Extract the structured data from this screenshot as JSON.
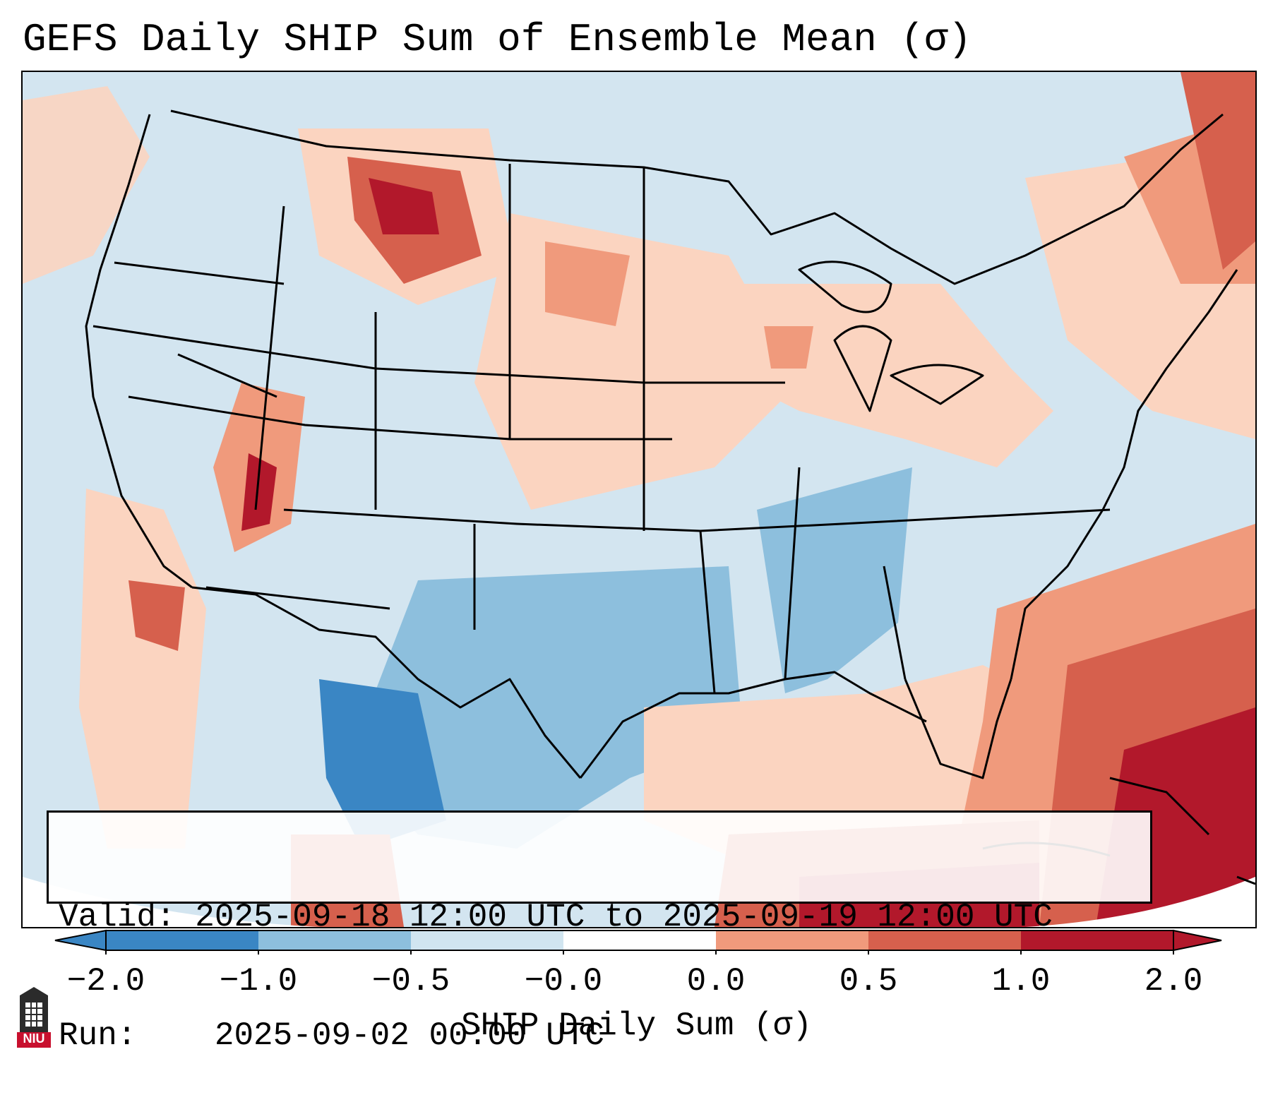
{
  "title": "GEFS Daily SHIP Sum of Ensemble Mean (σ)",
  "info": {
    "valid_label": "Valid:",
    "valid_value": "2025-09-18 12:00 UTC to 2025-09-19 12:00 UTC",
    "run_label": "Run:",
    "run_value": "2025-09-02 00:00 UTC"
  },
  "colorbar": {
    "label": "SHIP Daily Sum (σ)",
    "ticks": [
      "−2.0",
      "−1.0",
      "−0.5",
      "−0.0",
      "0.0",
      "0.5",
      "1.0",
      "2.0"
    ],
    "colors": [
      "#3a86c4",
      "#8dbfdd",
      "#d1e5f0",
      "#ffffff",
      "#fbd4c0",
      "#f09a7c",
      "#d6604d",
      "#b2182b"
    ]
  },
  "logo": {
    "text": "NIU"
  },
  "palette": {
    "ocean_background": "#d3e5f0",
    "light_blue": "#d1e5f0",
    "mid_blue": "#8dbfdd",
    "dark_blue": "#3a86c4",
    "light_red": "#fbd4c0",
    "mid_red": "#f09a7c",
    "red": "#d6604d",
    "dark_red": "#b2182b"
  }
}
